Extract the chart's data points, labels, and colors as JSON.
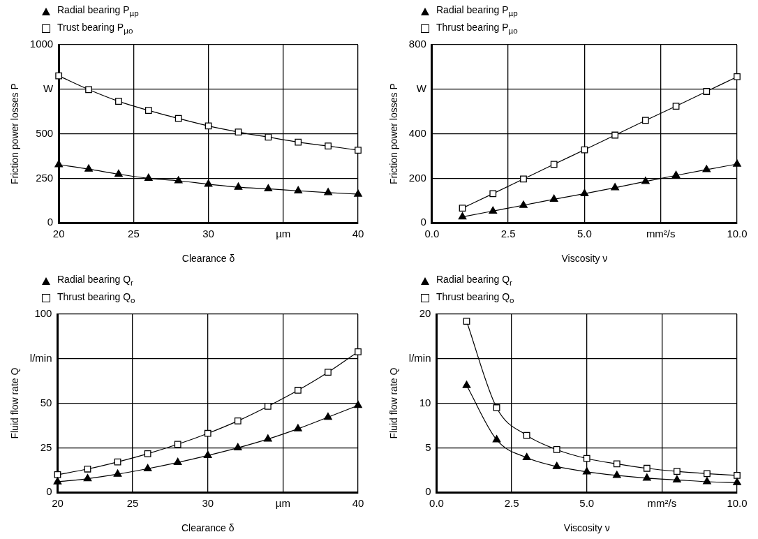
{
  "chart_data": [
    {
      "type": "line",
      "xlabel": "Clearance δ",
      "ylabel": "Friction power losses P",
      "x": [
        20,
        22,
        24,
        26,
        28,
        30,
        32,
        34,
        36,
        38,
        40
      ],
      "xlim": [
        20,
        40
      ],
      "xticks": [
        20,
        25,
        30,
        {
          "value": 35,
          "label": "µm"
        },
        40
      ],
      "ylim": [
        0,
        1000
      ],
      "yticks": [
        0,
        250,
        500,
        {
          "value": 750,
          "label": "W"
        },
        1000
      ],
      "grid": true,
      "legend": "top left",
      "series": [
        {
          "name": "Radial bearing P$_{µp}$",
          "color": "#000000",
          "marker": "triangle",
          "values": [
            327,
            302,
            273,
            250,
            236,
            217,
            200,
            191,
            180,
            170,
            161
          ]
        },
        {
          "name": "Trust bearing P$_{µo}$",
          "color": "#000000",
          "marker": "square",
          "values": [
            825,
            748,
            682,
            631,
            586,
            544,
            510,
            481,
            453,
            431,
            408
          ]
        }
      ]
    },
    {
      "type": "line",
      "xlabel": "Viscosity ν",
      "ylabel": "Friction power losses P",
      "x": [
        1,
        2,
        3,
        4,
        5,
        6,
        7,
        8,
        9,
        10
      ],
      "xlim": [
        0,
        10
      ],
      "xticks": [
        {
          "value": 0,
          "label": "0.0"
        },
        2.5,
        {
          "value": 5,
          "label": "5.0"
        },
        {
          "value": 7.5,
          "label": "mm²/s"
        },
        {
          "value": 10,
          "label": "10.0"
        }
      ],
      "ylim": [
        0,
        800
      ],
      "yticks": [
        0,
        200,
        400,
        {
          "value": 600,
          "label": "W"
        },
        800
      ],
      "grid": true,
      "legend": "top left",
      "series": [
        {
          "name": "Radial bearing P$_{µp}$",
          "color": "#000000",
          "marker": "triangle",
          "values": [
            27,
            53,
            79,
            106,
            131,
            158,
            186,
            213,
            239,
            264
          ]
        },
        {
          "name": "Thrust bearing P$_{µo}$",
          "color": "#000000",
          "marker": "square",
          "values": [
            66,
            131,
            197,
            263,
            328,
            394,
            460,
            524,
            590,
            656
          ]
        }
      ]
    },
    {
      "type": "line",
      "xlabel": "Clearance δ",
      "ylabel": "Fluid flow rate Q",
      "x": [
        20,
        22,
        24,
        26,
        28,
        30,
        32,
        34,
        36,
        38,
        40
      ],
      "xlim": [
        20,
        40
      ],
      "xticks": [
        20,
        25,
        30,
        {
          "value": 35,
          "label": "µm"
        },
        40
      ],
      "ylim": [
        0,
        100
      ],
      "yticks": [
        0,
        25,
        50,
        {
          "value": 75,
          "label": "l/min"
        },
        100
      ],
      "grid": true,
      "legend": "top left",
      "series": [
        {
          "name": "Radial bearing Q$_{r}$",
          "color": "#000000",
          "marker": "triangle",
          "values": [
            5.9,
            7.7,
            10.2,
            13.3,
            16.8,
            20.7,
            25,
            29.9,
            35.7,
            42.2,
            48.8
          ]
        },
        {
          "name": "Thrust bearing Q$_{o}$",
          "color": "#000000",
          "marker": "square",
          "values": [
            9.9,
            13.1,
            17.1,
            21.7,
            27,
            33.1,
            40.1,
            48.3,
            57.3,
            67.4,
            78.9
          ]
        }
      ]
    },
    {
      "type": "line",
      "xlabel": "Viscosity ν",
      "ylabel": "Fluid flow rate Q",
      "x": [
        1,
        2,
        3,
        4,
        5,
        6,
        7,
        8,
        9,
        10
      ],
      "xlim": [
        0,
        10
      ],
      "xticks": [
        {
          "value": 0,
          "label": "0.0"
        },
        2.5,
        {
          "value": 5,
          "label": "5.0"
        },
        {
          "value": 7.5,
          "label": "mm²/s"
        },
        {
          "value": 10,
          "label": "10.0"
        }
      ],
      "ylim": [
        0,
        20
      ],
      "yticks": [
        0,
        5,
        10,
        {
          "value": 15,
          "label": "l/min"
        },
        20
      ],
      "grid": true,
      "legend": "top left",
      "series": [
        {
          "name": "Radial bearing Q$_{r}$",
          "color": "#000000",
          "marker": "triangle",
          "values": [
            12,
            5.9,
            3.9,
            2.9,
            2.3,
            1.9,
            1.6,
            1.4,
            1.2,
            1.1
          ]
        },
        {
          "name": "Thrust bearing Q$_{o}$",
          "color": "#000000",
          "marker": "square",
          "values": [
            19.2,
            9.5,
            6.4,
            4.8,
            3.8,
            3.2,
            2.7,
            2.35,
            2.1,
            1.9
          ]
        }
      ]
    }
  ]
}
